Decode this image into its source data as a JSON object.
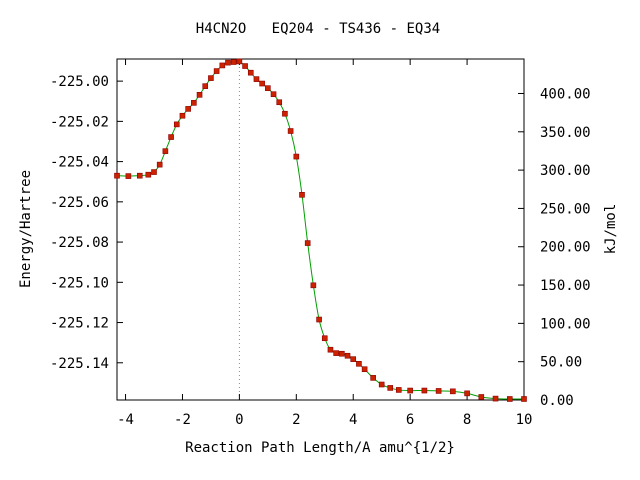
{
  "chart_data": {
    "type": "line",
    "title": "H4CN2O   EQ204 - TS436 - EQ34",
    "xlabel": "Reaction Path Length/A amu^{1/2}",
    "ylabel": "Energy/Hartree",
    "y2label": "kJ/mol",
    "xlim": [
      -4.3,
      10.0
    ],
    "ylim": [
      -225.1585,
      -224.989
    ],
    "y2lim": [
      0.0,
      445.0
    ],
    "xticks": [
      -4,
      -2,
      0,
      2,
      4,
      6,
      8,
      10
    ],
    "xtick_labels": [
      "-4",
      "-2",
      "0",
      "2",
      "4",
      "6",
      "8",
      "10"
    ],
    "yticks": [
      -225.0,
      -225.02,
      -225.04,
      -225.06,
      -225.08,
      -225.1,
      -225.12,
      -225.14
    ],
    "ytick_labels": [
      "-225.00",
      "-225.02",
      "-225.04",
      "-225.06",
      "-225.08",
      "-225.10",
      "-225.12",
      "-225.14"
    ],
    "y2ticks": [
      0,
      50,
      100,
      150,
      200,
      250,
      300,
      350,
      400
    ],
    "y2tick_labels": [
      "0.00",
      "50.00",
      "100.00",
      "150.00",
      "200.00",
      "250.00",
      "300.00",
      "350.00",
      "400.00"
    ],
    "ts_marker_x": 0.0,
    "grid": false,
    "line_color": "#00a000",
    "marker_color": "#cc2200",
    "marker_edge_color": "#8b0000",
    "series": [
      {
        "x": [
          -4.3,
          -3.9,
          -3.5,
          -3.2,
          -3.0,
          -2.8,
          -2.6,
          -2.4,
          -2.2,
          -2.0,
          -1.8,
          -1.6,
          -1.4,
          -1.2,
          -1.0,
          -0.8,
          -0.6,
          -0.4,
          -0.2,
          0.0,
          0.2,
          0.4,
          0.6,
          0.8,
          1.0,
          1.2,
          1.4,
          1.6,
          1.8,
          2.0,
          2.2,
          2.4,
          2.6,
          2.8,
          3.0,
          3.2,
          3.4,
          3.6,
          3.8,
          4.0,
          4.2,
          4.4,
          4.7,
          5.0,
          5.3,
          5.6,
          6.0,
          6.5,
          7.0,
          7.5,
          8.0,
          8.5,
          9.0,
          9.5,
          10.0
        ],
        "y": [
          -225.047,
          -225.0472,
          -225.047,
          -225.0465,
          -225.0452,
          -225.0415,
          -225.0348,
          -225.0278,
          -225.0215,
          -225.0172,
          -225.0138,
          -225.0108,
          -225.0068,
          -225.0025,
          -224.9985,
          -224.995,
          -224.9922,
          -224.9908,
          -224.9905,
          -224.9902,
          -224.9925,
          -224.9958,
          -224.999,
          -225.0012,
          -225.0035,
          -225.0065,
          -225.0105,
          -225.0162,
          -225.0248,
          -225.0375,
          -225.0565,
          -225.0805,
          -225.1015,
          -225.1185,
          -225.1278,
          -225.1335,
          -225.1352,
          -225.1355,
          -225.1365,
          -225.1382,
          -225.1405,
          -225.1432,
          -225.1475,
          -225.1508,
          -225.1525,
          -225.1535,
          -225.1538,
          -225.1538,
          -225.154,
          -225.1542,
          -225.1552,
          -225.157,
          -225.1578,
          -225.158,
          -225.158
        ]
      }
    ]
  }
}
